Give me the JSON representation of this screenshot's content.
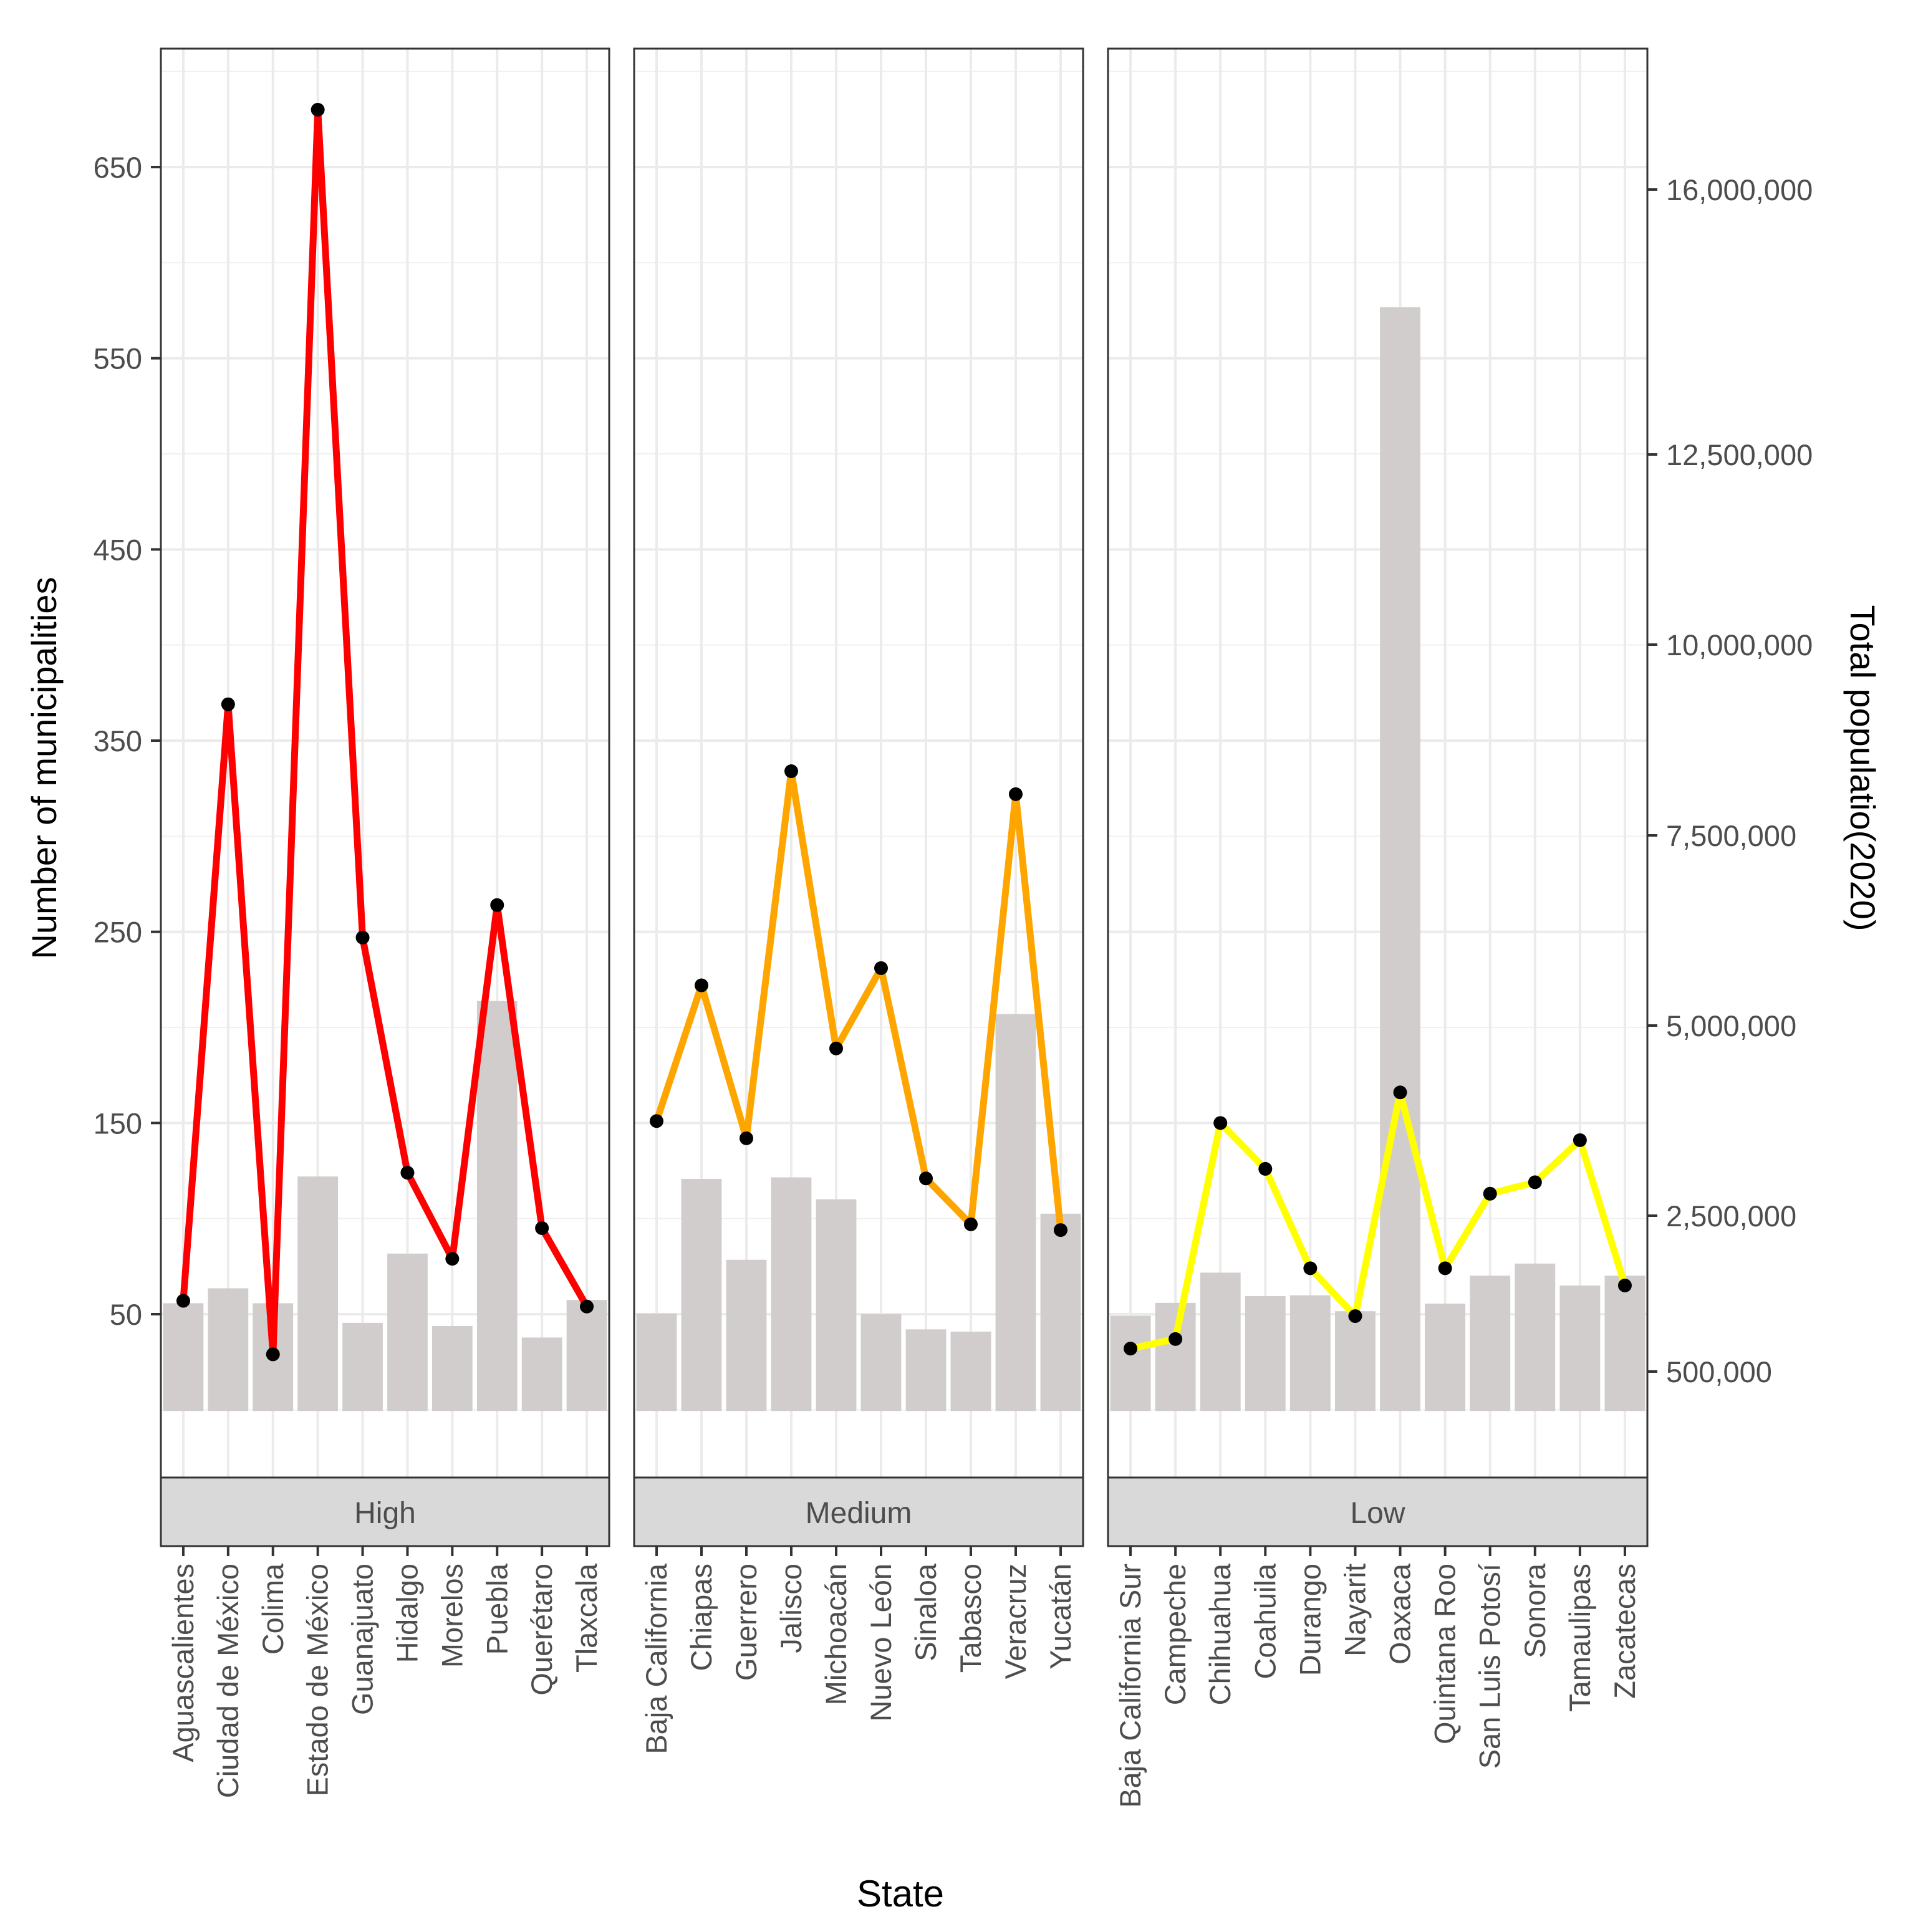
{
  "chart_data": {
    "type": "bar+line (faceted, dual axis)",
    "xlabel": "State",
    "ylabel_left": "Number of municipalities",
    "ylabel_right": "Total populatio(2020)",
    "left_ticks": [
      50,
      150,
      250,
      350,
      450,
      550,
      650
    ],
    "left_tick_labels": [
      "50",
      "150",
      "250",
      "350",
      "450",
      "550",
      "650"
    ],
    "right_ticks": [
      500000,
      2500000,
      5000000,
      7500000,
      10000000,
      12500000,
      16000000
    ],
    "right_tick_labels": [
      "500,000",
      "2,500,000",
      "5,000,000",
      "7,500,000",
      "10,000,000",
      "12,500,000",
      "16,000,000"
    ],
    "bar_color": "#d1cdcc",
    "point_color": "#000000",
    "facets": [
      {
        "label": "High",
        "line_color": "#ff0000",
        "states": [
          "Aguascalientes",
          "Ciudad de México",
          "Colima",
          "Estado de México",
          "Guanajuato",
          "Hidalgo",
          "Morelos",
          "Puebla",
          "Querétaro",
          "Tlaxcala"
        ],
        "municipalities": [
          57,
          369,
          29,
          680,
          247,
          124,
          79,
          264,
          95,
          54
        ],
        "population": [
          1425607,
          1622920,
          1425607,
          3101660,
          1166227,
          2082052,
          1123813,
          5422250,
          971934,
          1468765
        ]
      },
      {
        "label": "Medium",
        "line_color": "#ffa500",
        "states": [
          "Baja California",
          "Chiapas",
          "Guerrero",
          "Jalisco",
          "Michoacán",
          "Nuevo León",
          "Sinaloa",
          "Tabasco",
          "Veracruz",
          "Yucatán"
        ],
        "municipalities": [
          151,
          222,
          142,
          334,
          189,
          231,
          121,
          97,
          322,
          94
        ],
        "population": [
          1290000,
          3070000,
          2000000,
          3090000,
          2800000,
          1280000,
          1080000,
          1050000,
          5250000,
          2610000
        ]
      },
      {
        "label": "Low",
        "line_color": "#ffff00",
        "states": [
          "Baja California Sur",
          "Campeche",
          "Chihuahua",
          "Coahuila",
          "Durango",
          "Nayarit",
          "Oaxaca",
          "Quintana Roo",
          "San Luis Potosí",
          "Sonora",
          "Tamaulipas",
          "Zacatecas"
        ],
        "municipalities": [
          32,
          37,
          150,
          126,
          74,
          49,
          166,
          74,
          113,
          119,
          141,
          65
        ],
        "population": [
          1260000,
          1430000,
          1830000,
          1520000,
          1530000,
          1320000,
          14600000,
          1420000,
          1790000,
          1950000,
          1660000,
          1790000
        ]
      }
    ]
  }
}
